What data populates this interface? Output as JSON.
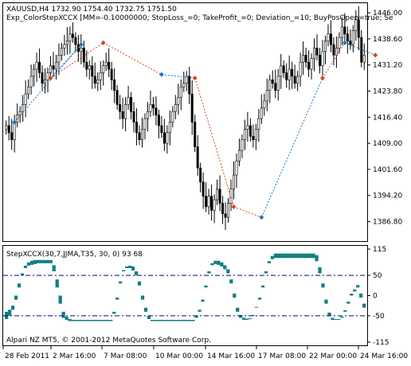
{
  "main_pane": {
    "header_line1": "XAUUSD,H4  1732.90 1754.40 1732.75 1751.50",
    "header_line2": "Exp_ColorStepXCCX [MM=-0.10000000; StopLoss_=0; TakeProfit_=0; Deviation_=10; BuyPosOpen=true; Se",
    "price_axis": [
      "1446.00",
      "1438.60",
      "1431.20",
      "1423.80",
      "1416.40",
      "1409.00",
      "1401.60",
      "1394.20",
      "1386.80"
    ],
    "ylim": [
      1381.5,
      1448.5
    ]
  },
  "indicator_pane": {
    "title": "StepXCCX(30,7,JJMA,T35, 30, 0) 93 68",
    "axis": [
      "115",
      "50",
      "0",
      "-50",
      "-115"
    ],
    "levels": [
      50,
      -50
    ],
    "ylim": [
      -121,
      121
    ]
  },
  "time_axis": [
    "28 Feb 2011",
    "2 Mar 16:00",
    "7 Mar 08:00",
    "10 Mar 00:00",
    "14 Mar 16:00",
    "17 Mar 08:00",
    "22 Mar 00:00",
    "24 Mar 16:00"
  ],
  "copyright": "Alpari NZ MT5, © 2001-2012 MetaQuotes Software Corp.",
  "colors": {
    "bull_candle": "#000000",
    "bear_candle": "#000000",
    "buy_marker": "#1e73be",
    "sell_marker": "#d2461e",
    "buy_line": "#1e73be",
    "sell_line": "#d2461e",
    "osc_up": "#138080",
    "osc_down": "#ff00ff",
    "level_line": "#00007f"
  },
  "chart_data": [
    {
      "type": "candlestick",
      "title": "XAUUSD,H4",
      "ylim": [
        1381.5,
        1448.5
      ],
      "closes_estimated": [
        1414,
        1412,
        1410,
        1415,
        1417,
        1418,
        1420,
        1423,
        1425,
        1428,
        1430,
        1432,
        1429,
        1426,
        1427,
        1429,
        1431,
        1430,
        1432,
        1434,
        1436,
        1437,
        1438,
        1440,
        1439,
        1437,
        1435,
        1436,
        1432,
        1430,
        1431,
        1428,
        1426,
        1427,
        1429,
        1431,
        1432,
        1430,
        1427,
        1424,
        1420,
        1418,
        1416,
        1420,
        1422,
        1418,
        1415,
        1412,
        1410,
        1413,
        1416,
        1418,
        1420,
        1419,
        1417,
        1414,
        1412,
        1409,
        1412,
        1415,
        1418,
        1420,
        1422,
        1425,
        1426,
        1428,
        1423,
        1415,
        1408,
        1402,
        1398,
        1394,
        1391,
        1394,
        1390,
        1393,
        1396,
        1392,
        1389,
        1388,
        1392,
        1396,
        1400,
        1404,
        1407,
        1410,
        1413,
        1414,
        1411,
        1410,
        1413,
        1416,
        1419,
        1421,
        1424,
        1427,
        1426,
        1424,
        1428,
        1431,
        1429,
        1427,
        1430,
        1428,
        1426,
        1428,
        1432,
        1434,
        1432,
        1430,
        1433,
        1436,
        1434,
        1431,
        1435,
        1438,
        1440,
        1437,
        1434,
        1436,
        1439,
        1442,
        1440,
        1438,
        1437,
        1441,
        1444,
        1439,
        1432,
        1434
      ],
      "trade_markers": [
        {
          "side": "buy",
          "bar": 3,
          "price": 1415
        },
        {
          "side": "buy",
          "bar": 27,
          "price": 1437
        },
        {
          "side": "sell",
          "bar": 16,
          "price": 1427.5
        },
        {
          "side": "sell",
          "bar": 35,
          "price": 1437.5
        },
        {
          "side": "buy",
          "bar": 56,
          "price": 1428.5
        },
        {
          "side": "sell",
          "bar": 68,
          "price": 1427.5
        },
        {
          "side": "sell",
          "bar": 82,
          "price": 1391
        },
        {
          "side": "buy",
          "bar": 92,
          "price": 1388
        },
        {
          "side": "sell",
          "bar": 114,
          "price": 1427.5
        },
        {
          "side": "buy",
          "bar": 122,
          "price": 1437.5
        },
        {
          "side": "sell",
          "bar": 133,
          "price": 1434
        }
      ]
    },
    {
      "type": "area",
      "title": "StepXCCX(30,7,JJMA,T35, 30, 0) 93 68",
      "ylim": [
        -121,
        121
      ],
      "series": [
        {
          "name": "",
          "values": [
            -58,
            -50,
            -35,
            -10,
            20,
            50,
            68,
            74,
            76,
            78,
            80,
            80,
            80,
            80,
            80,
            60,
            20,
            -20,
            -55,
            -60,
            -63,
            -63,
            -63,
            -63,
            -63,
            -63,
            -63,
            -63,
            -63,
            -63,
            -63,
            -63,
            -63,
            -63,
            -45,
            -10,
            30,
            60,
            68,
            68,
            62,
            50,
            25,
            -10,
            -40,
            -58,
            -63,
            -63,
            -63,
            -63,
            -63,
            -63,
            -63,
            -63,
            -63,
            -63,
            -63,
            -63,
            -63,
            -63,
            -55,
            -40,
            -15,
            20,
            55,
            75,
            78,
            76,
            72,
            65,
            55,
            30,
            -5,
            -40,
            -55,
            -60,
            -60,
            -58,
            -50,
            -30,
            -10,
            20,
            55,
            80,
            90,
            93,
            93,
            93,
            93,
            93,
            93,
            93,
            93,
            93,
            93,
            93,
            93,
            93,
            85,
            55,
            20,
            -20,
            -50,
            -60,
            -60,
            -60,
            -55,
            -40,
            -20,
            0,
            10,
            20,
            -5,
            -30
          ],
          "shadow": [
            -40,
            -35,
            -25,
            0,
            30,
            55,
            74,
            82,
            86,
            88,
            88,
            88,
            88,
            88,
            88,
            75,
            40,
            0,
            -40,
            -52,
            -58,
            -60,
            -60,
            -60,
            -60,
            -60,
            -60,
            -60,
            -60,
            -60,
            -60,
            -60,
            -60,
            -60,
            -40,
            -5,
            35,
            63,
            72,
            74,
            72,
            60,
            35,
            0,
            -30,
            -50,
            -60,
            -60,
            -60,
            -60,
            -60,
            -60,
            -60,
            -60,
            -60,
            -60,
            -60,
            -60,
            -60,
            -60,
            -50,
            -35,
            -10,
            25,
            60,
            80,
            86,
            86,
            82,
            75,
            65,
            40,
            5,
            -30,
            -48,
            -55,
            -57,
            -56,
            -48,
            -28,
            -5,
            25,
            60,
            85,
            98,
            104,
            104,
            104,
            104,
            104,
            104,
            104,
            104,
            104,
            104,
            104,
            104,
            104,
            100,
            70,
            30,
            -10,
            -42,
            -55,
            -58,
            -58,
            -52,
            -36,
            -15,
            5,
            15,
            26,
            5,
            -20
          ]
        }
      ]
    }
  ]
}
